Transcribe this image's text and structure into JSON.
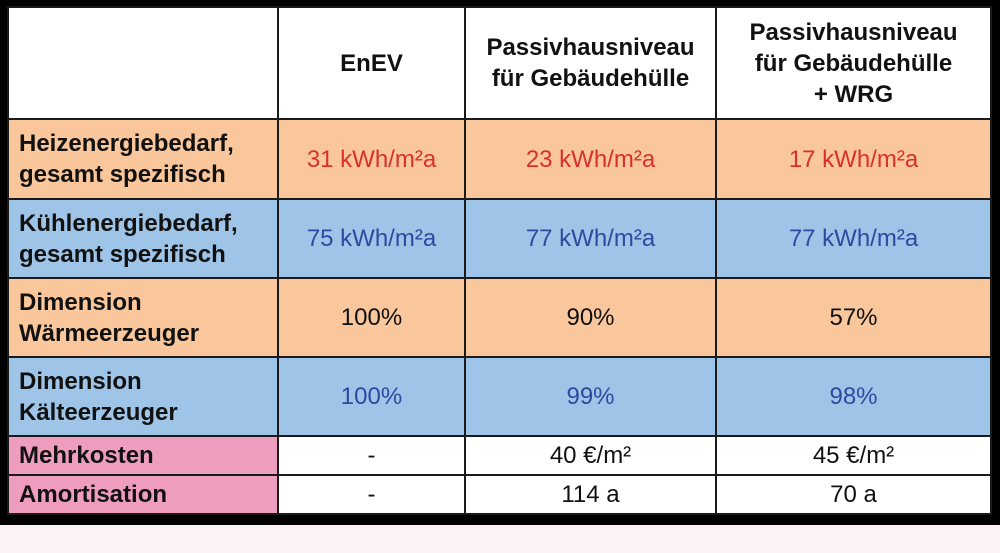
{
  "colors": {
    "orange_row": "#f9c79b",
    "blue_row": "#9ec4e7",
    "pink_label": "#ef9dbf",
    "red_text": "#d9302c",
    "navy_text": "#2e4aa0"
  },
  "header": {
    "corner": "",
    "col1": "EnEV",
    "col2_line1": "Passivhausniveau",
    "col2_line2": "für Gebäudehülle",
    "col3_line1": "Passivhausniveau",
    "col3_line2": "für Gebäudehülle",
    "col3_line3": "+ WRG"
  },
  "rows": [
    {
      "label_line1": "Heizenergiebedarf,",
      "label_line2": "gesamt spezifisch",
      "v1": "31 kWh/m²a",
      "v2": "23 kWh/m²a",
      "v3": "17 kWh/m²a"
    },
    {
      "label_line1": "Kühlenergiebedarf,",
      "label_line2": "gesamt spezifisch",
      "v1": "75 kWh/m²a",
      "v2": "77 kWh/m²a",
      "v3": "77 kWh/m²a"
    },
    {
      "label_line1": "Dimension",
      "label_line2": "Wärmeerzeuger",
      "v1": "100%",
      "v2": "90%",
      "v3": "57%"
    },
    {
      "label_line1": "Dimension",
      "label_line2": "Kälteerzeuger",
      "v1": "100%",
      "v2": "99%",
      "v3": "98%"
    },
    {
      "label_line1": "Mehrkosten",
      "v1": "-",
      "v2": "40 €/m²",
      "v3": "45 €/m²"
    },
    {
      "label_line1": "Amortisation",
      "v1": "-",
      "v2": "114 a",
      "v3": "70 a"
    }
  ]
}
